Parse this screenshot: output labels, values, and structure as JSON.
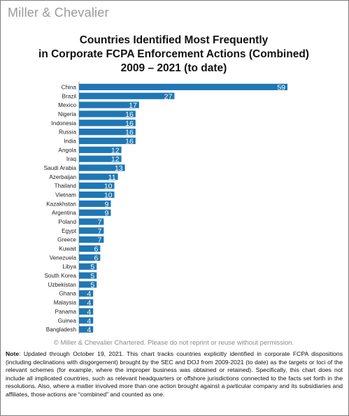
{
  "logo": "Miller & Chevalier",
  "title_lines": [
    "Countries Identified Most Frequently",
    "in Corporate FCPA Enforcement Actions (Combined)",
    "2009 – 2021 (to date)"
  ],
  "copyright": "© Miller & Chevalier Chartered. Please do not reprint or reuse without permission.",
  "note_label": "Note",
  "note_text": ": Updated through October 19, 2021. This chart tracks countries explicitly identified in corporate FCPA dispositions (including declinations with disgorgement) brought by the SEC and DOJ from 2009-2021 (to date) as the targets or loci of the relevant schemes (for example, where the improper business was obtained or retained). Specifically, this chart does not include all implicated countries, such as relevant headquarters or offshore jurisdictions connected to the facts set forth in the resolutions. Also, where a matter involved more than one action brought against a particular company and its subsidiaries and affiliates, those actions are “combined” and counted as one.",
  "colors": {
    "bar": "#1f77b4",
    "bar_label": "#ffffff",
    "axis": "#8c8c8c"
  },
  "chart_data": {
    "type": "bar",
    "orientation": "horizontal",
    "categories": [
      "China",
      "Brazil",
      "Mexico",
      "Nigeria",
      "Indonesia",
      "Russia",
      "India",
      "Angola",
      "Iraq",
      "Saudi Arabia",
      "Azerbaijan",
      "Thailand",
      "Vietnam",
      "Kazakhstan",
      "Argentina",
      "Poland",
      "Egypt",
      "Greece",
      "Kuwait",
      "Venezuela",
      "Libya",
      "South Korea",
      "Uzbekistan",
      "Ghana",
      "Malaysia",
      "Panama",
      "Guinea",
      "Bangladesh"
    ],
    "values": [
      59,
      27,
      17,
      16,
      16,
      16,
      16,
      12,
      12,
      13,
      11,
      10,
      10,
      9,
      9,
      7,
      7,
      7,
      6,
      6,
      5,
      5,
      5,
      4,
      4,
      4,
      4,
      4
    ],
    "xlim": [
      0,
      59
    ],
    "grid": false,
    "data_labels": true
  }
}
